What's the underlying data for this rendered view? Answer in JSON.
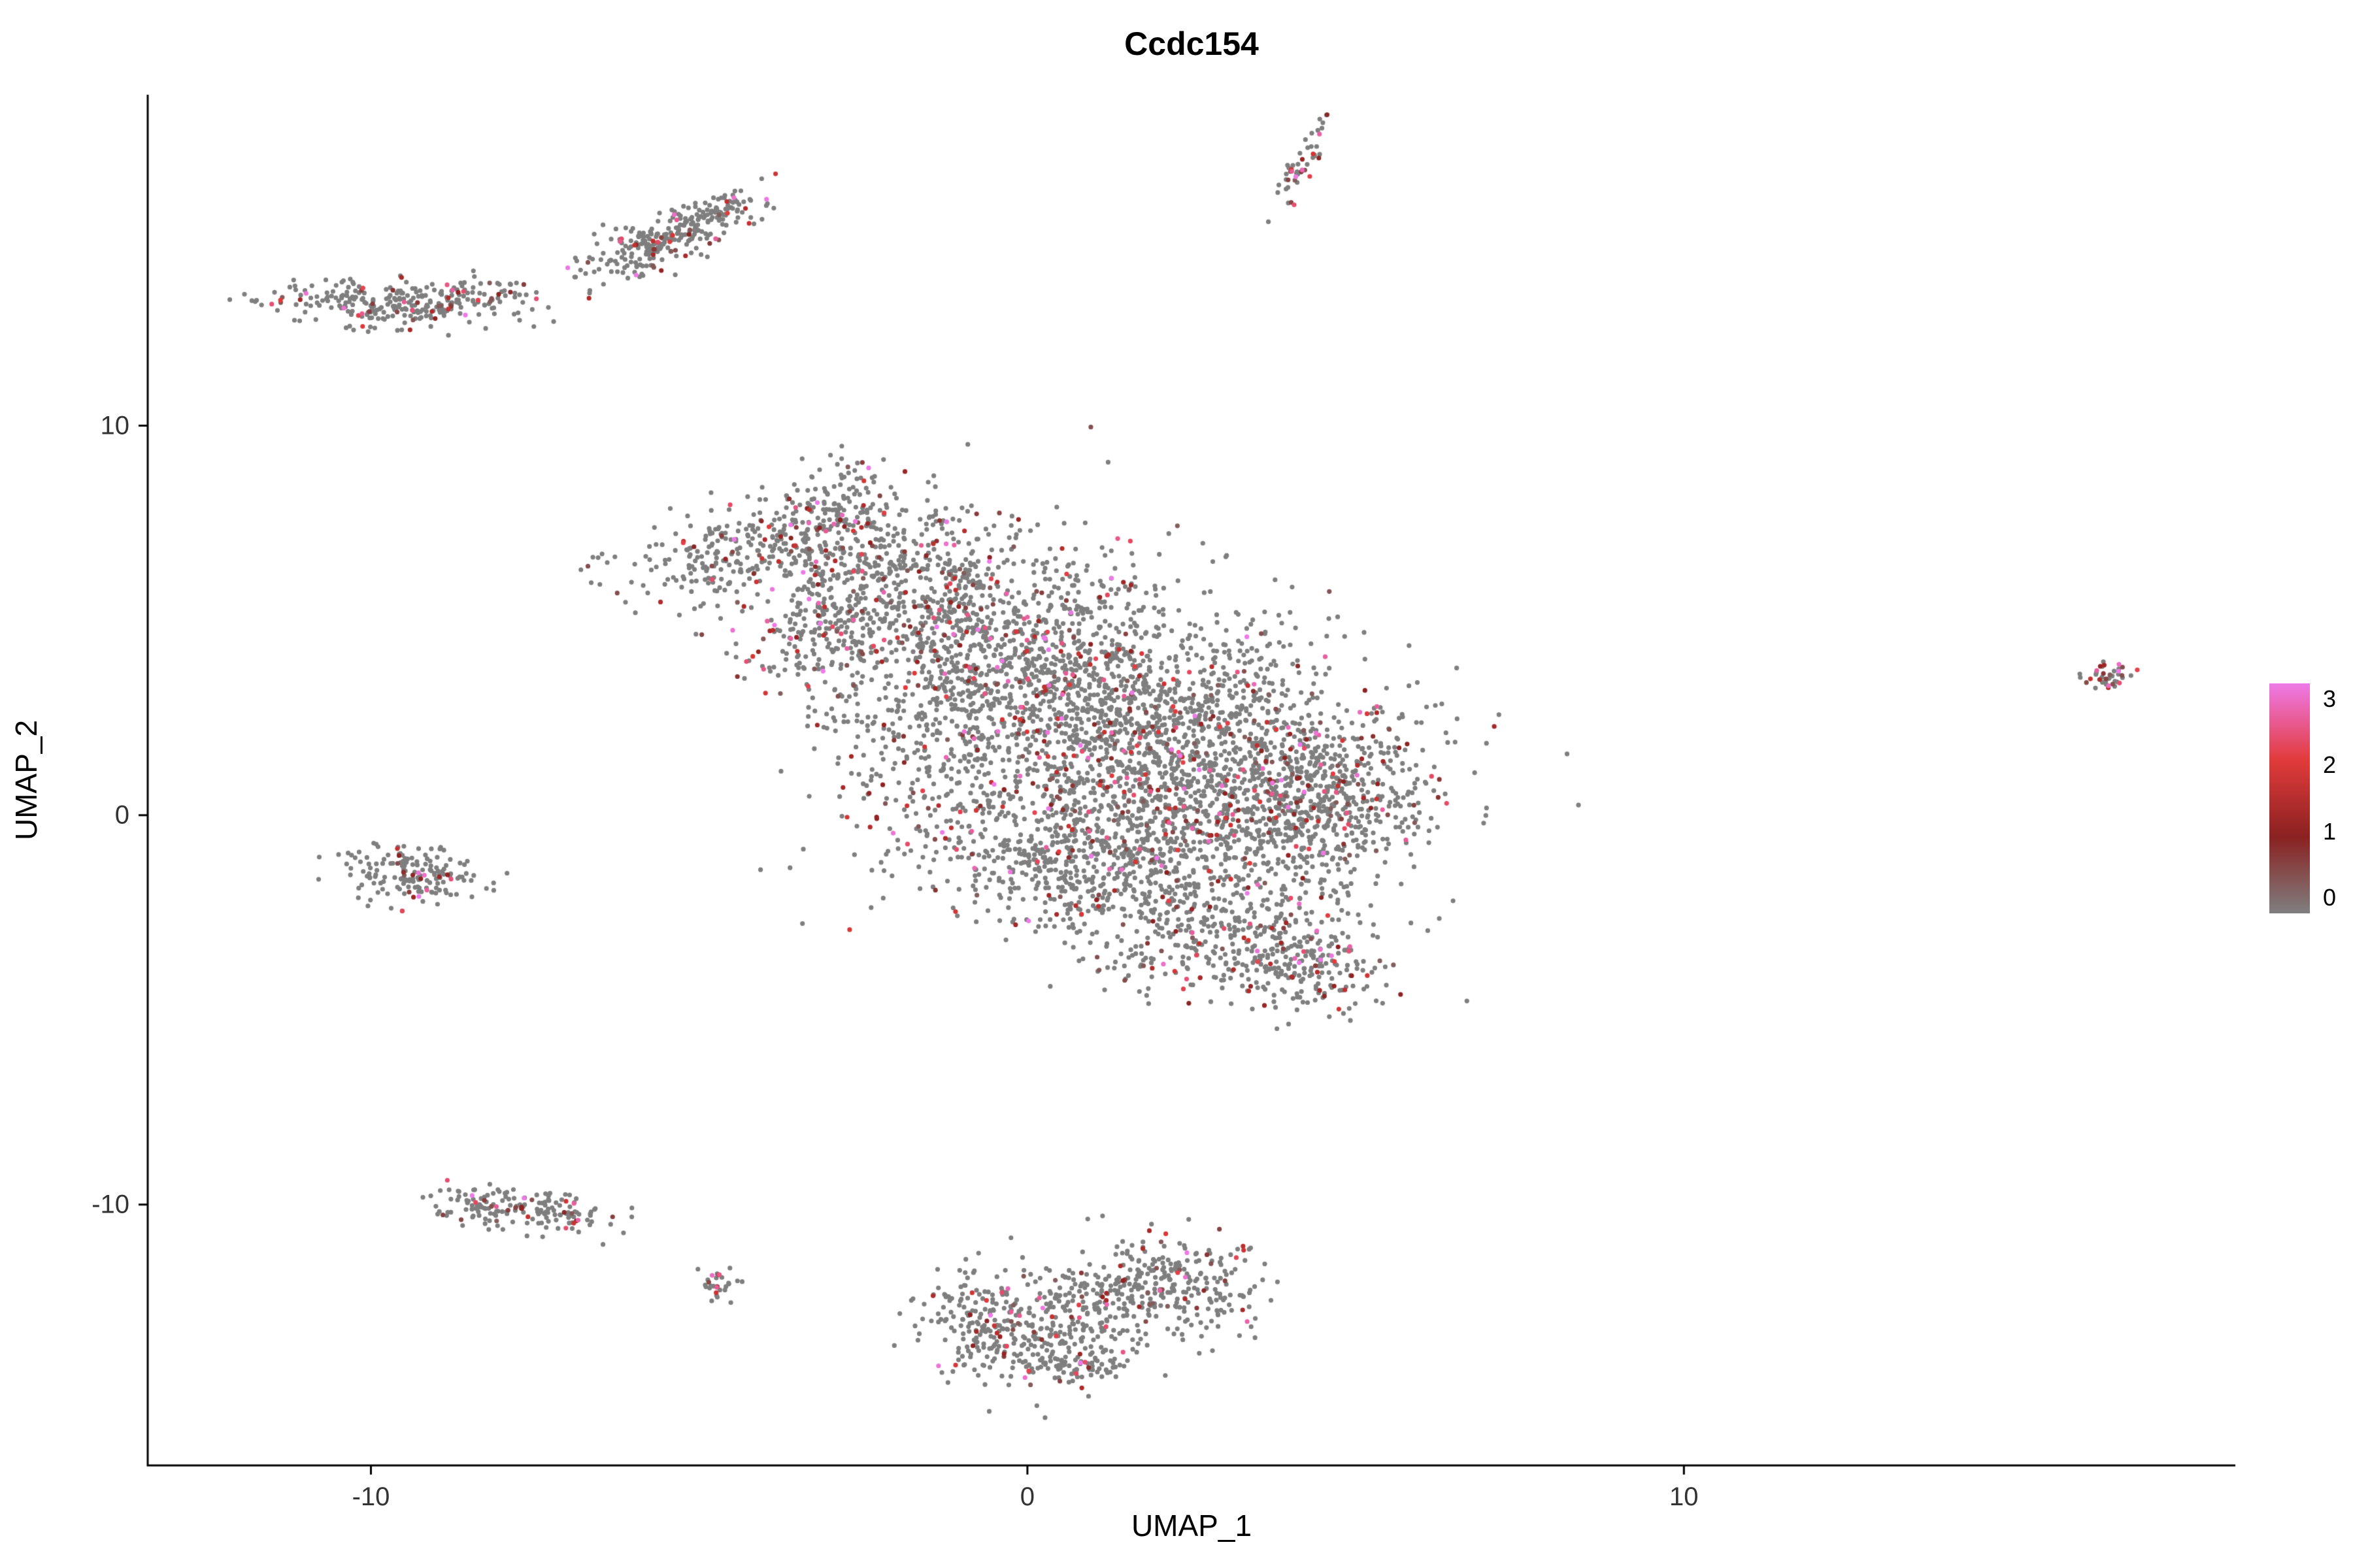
{
  "chart_data": {
    "type": "scatter",
    "title": "Ccdc154",
    "xlabel": "UMAP_1",
    "ylabel": "UMAP_2",
    "x_domain": [
      -13.4,
      18.4
    ],
    "y_domain": [
      -16.7,
      18.5
    ],
    "x_ticks": [
      -10,
      0,
      10
    ],
    "y_ticks": [
      10,
      0,
      -10
    ],
    "grid": false,
    "legend": {
      "position": "right",
      "values": [
        3,
        2,
        1,
        0
      ]
    },
    "color_scale": {
      "stops": [
        {
          "value": 0,
          "color": "#7F7F7F"
        },
        {
          "value": 1,
          "color": "#8B2121"
        },
        {
          "value": 2,
          "color": "#E23B3B"
        },
        {
          "value": 3,
          "color": "#EE7AE8"
        }
      ]
    },
    "point_color_zero": "#7F7F7F",
    "axis_color": "#000000",
    "point_radius_px": 3.6,
    "seed": 42,
    "clusters": [
      {
        "name": "top-left-main",
        "c": [
          -9.9,
          13.15
        ],
        "s": [
          0.95,
          0.32
        ],
        "n": 230,
        "a": -4,
        "r": 0.12
      },
      {
        "name": "top-left-tail",
        "c": [
          -8.35,
          13.3
        ],
        "s": [
          0.5,
          0.25
        ],
        "n": 70,
        "a": 8,
        "r": 0.1
      },
      {
        "name": "top-mid-diagonal",
        "c": [
          -5.6,
          14.7
        ],
        "s": [
          0.75,
          0.3
        ],
        "n": 230,
        "a": 38,
        "r": 0.15
      },
      {
        "name": "top-mid-tip",
        "c": [
          -4.6,
          15.55
        ],
        "s": [
          0.35,
          0.22
        ],
        "n": 70,
        "a": 20,
        "r": 0.15
      },
      {
        "name": "top-streak",
        "c": [
          4.15,
          16.6
        ],
        "s": [
          0.55,
          0.1
        ],
        "n": 50,
        "a": 70,
        "r": 0.35
      },
      {
        "name": "main-peninsula",
        "c": [
          -4.4,
          6.8
        ],
        "s": [
          0.95,
          0.5
        ],
        "n": 260,
        "a": 25,
        "r": 0.15
      },
      {
        "name": "main-appendage",
        "c": [
          -3.3,
          4.6
        ],
        "s": [
          0.45,
          0.65
        ],
        "n": 110,
        "a": 0,
        "r": 0.12
      },
      {
        "name": "main-upper-tip",
        "c": [
          -2.9,
          8.0
        ],
        "s": [
          0.5,
          0.6
        ],
        "n": 120,
        "a": 0,
        "r": 0.13
      },
      {
        "name": "main-upper",
        "c": [
          -2.2,
          6.2
        ],
        "s": [
          1.1,
          0.9
        ],
        "n": 420,
        "a": 10,
        "r": 0.13
      },
      {
        "name": "main-upper-mid",
        "c": [
          -0.6,
          4.6
        ],
        "s": [
          1.4,
          1.3
        ],
        "n": 700,
        "a": 0,
        "r": 0.13
      },
      {
        "name": "main-core",
        "c": [
          1.2,
          2.6
        ],
        "s": [
          1.7,
          1.5
        ],
        "n": 1250,
        "a": 0,
        "r": 0.13
      },
      {
        "name": "main-right",
        "c": [
          3.2,
          0.9
        ],
        "s": [
          1.4,
          1.3
        ],
        "n": 900,
        "a": 0,
        "r": 0.13
      },
      {
        "name": "main-right-bulge",
        "c": [
          4.6,
          0.4
        ],
        "s": [
          0.8,
          0.9
        ],
        "n": 300,
        "a": 0,
        "r": 0.13
      },
      {
        "name": "main-lower-mid",
        "c": [
          1.6,
          -0.9
        ],
        "s": [
          1.5,
          1.0
        ],
        "n": 500,
        "a": 0,
        "r": 0.12
      },
      {
        "name": "main-lower",
        "c": [
          2.9,
          -2.9
        ],
        "s": [
          1.2,
          0.9
        ],
        "n": 420,
        "a": -15,
        "r": 0.12
      },
      {
        "name": "main-lower-tail",
        "c": [
          4.3,
          -3.9
        ],
        "s": [
          0.55,
          0.6
        ],
        "n": 160,
        "a": 0,
        "r": 0.18
      },
      {
        "name": "main-left-sparse",
        "c": [
          -1.4,
          1.8
        ],
        "s": [
          0.9,
          1.6
        ],
        "n": 260,
        "a": 0,
        "r": 0.1
      },
      {
        "name": "main-bridge",
        "c": [
          0.3,
          -1.2
        ],
        "s": [
          0.8,
          0.9
        ],
        "n": 180,
        "a": 0,
        "r": 0.1
      },
      {
        "name": "left-small",
        "c": [
          -9.4,
          -1.5
        ],
        "s": [
          0.5,
          0.4
        ],
        "n": 170,
        "a": -10,
        "r": 0.1
      },
      {
        "name": "lower-left",
        "c": [
          -7.8,
          -10.1
        ],
        "s": [
          0.75,
          0.28
        ],
        "n": 150,
        "a": -8,
        "r": 0.12
      },
      {
        "name": "lower-left-tip",
        "c": [
          -6.9,
          -10.35
        ],
        "s": [
          0.2,
          0.15
        ],
        "n": 25,
        "a": 0,
        "r": 0.1
      },
      {
        "name": "tiny-left",
        "c": [
          -4.7,
          -12.05
        ],
        "s": [
          0.16,
          0.18
        ],
        "n": 30,
        "a": 0,
        "r": 0.2
      },
      {
        "name": "bottom-a",
        "c": [
          -0.2,
          -13.6
        ],
        "s": [
          0.65,
          0.5
        ],
        "n": 170,
        "a": 10,
        "r": 0.1
      },
      {
        "name": "bottom-b",
        "c": [
          0.9,
          -12.6
        ],
        "s": [
          0.8,
          0.7
        ],
        "n": 240,
        "a": 0,
        "r": 0.1
      },
      {
        "name": "bottom-c",
        "c": [
          2.2,
          -11.9
        ],
        "s": [
          0.7,
          0.6
        ],
        "n": 220,
        "a": -20,
        "r": 0.12
      },
      {
        "name": "bottom-d",
        "c": [
          -0.9,
          -12.6
        ],
        "s": [
          0.45,
          0.5
        ],
        "n": 90,
        "a": 0,
        "r": 0.1
      },
      {
        "name": "bottom-e",
        "c": [
          1.0,
          -14.2
        ],
        "s": [
          0.5,
          0.3
        ],
        "n": 70,
        "a": 5,
        "r": 0.1
      },
      {
        "name": "far-right",
        "c": [
          16.5,
          3.55
        ],
        "s": [
          0.22,
          0.18
        ],
        "n": 40,
        "a": 30,
        "r": 0.5
      }
    ]
  }
}
